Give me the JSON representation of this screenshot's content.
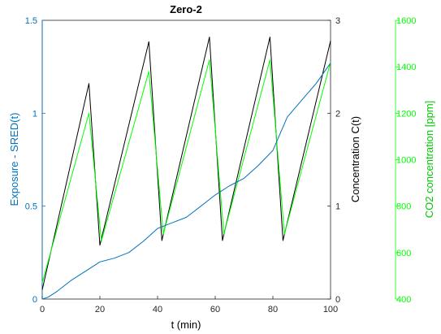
{
  "chart_data": {
    "type": "line",
    "title": "Zero-2",
    "xlabel": "t (min)",
    "xlim": [
      0,
      100
    ],
    "xticks": [
      0,
      20,
      40,
      60,
      80,
      100
    ],
    "grid": false,
    "axes": {
      "left": {
        "label": "Exposure - SRED(t)",
        "ylim": [
          0,
          1.5
        ],
        "ticks": [
          0,
          0.5,
          1,
          1.5
        ],
        "color": "#0072BD"
      },
      "right": {
        "label": "Concentration C(t)",
        "ylim": [
          0,
          3
        ],
        "ticks": [
          0,
          1,
          2,
          3
        ],
        "color": "#000000"
      },
      "right2": {
        "label": "CO2 concentration [ppm]",
        "ylim": [
          400,
          1600
        ],
        "ticks": [
          400,
          600,
          800,
          1000,
          1200,
          1400,
          1600
        ],
        "color": "#00FF00"
      }
    },
    "series": [
      {
        "axis": "right",
        "color": "#000000",
        "x": [
          0,
          16.2,
          20,
          37,
          41.5,
          58,
          62.5,
          79,
          83.5,
          100
        ],
        "y": [
          0.1,
          2.32,
          0.58,
          2.77,
          0.63,
          2.82,
          0.63,
          2.82,
          0.63,
          2.78
        ]
      },
      {
        "axis": "right2",
        "color": "#00FF00",
        "x": [
          0,
          16.2,
          20.5,
          37,
          42,
          58,
          63,
          79,
          84,
          100
        ],
        "y": [
          470,
          1200,
          650,
          1380,
          680,
          1430,
          680,
          1430,
          680,
          1420
        ]
      },
      {
        "axis": "left",
        "color": "#0072BD",
        "x": [
          0,
          2,
          5,
          10,
          15,
          20,
          25,
          30,
          35,
          40,
          45,
          50,
          55,
          60,
          65,
          70,
          75,
          80,
          85,
          90,
          95,
          100
        ],
        "y": [
          0,
          0.01,
          0.04,
          0.1,
          0.15,
          0.2,
          0.22,
          0.25,
          0.31,
          0.38,
          0.41,
          0.44,
          0.5,
          0.56,
          0.61,
          0.65,
          0.72,
          0.8,
          0.98,
          1.07,
          1.16,
          1.27
        ]
      }
    ]
  }
}
